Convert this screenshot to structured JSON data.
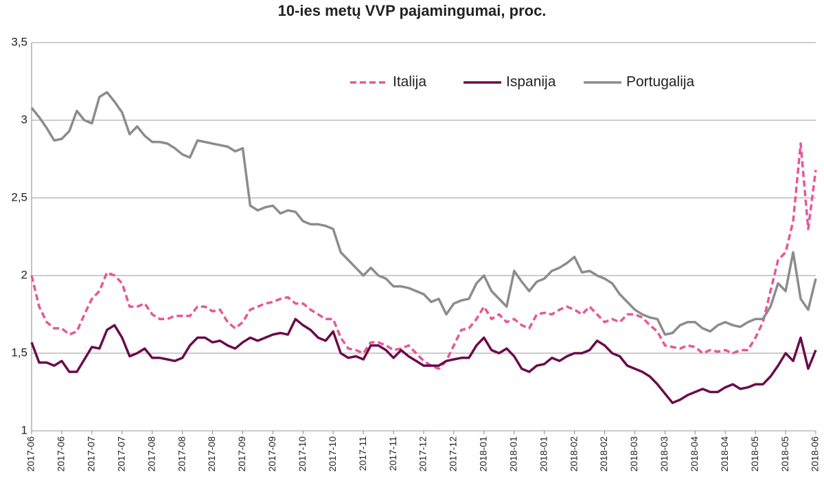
{
  "chart_data": {
    "type": "line",
    "title": "10-ies metų VVP pajamingumai,  proc.",
    "categories": [
      "2017-06",
      null,
      null,
      null,
      "2017-06",
      null,
      null,
      null,
      "2017-07",
      null,
      null,
      null,
      "2017-07",
      null,
      null,
      null,
      "2017-08",
      null,
      null,
      null,
      "2017-08",
      null,
      null,
      null,
      "2017-08",
      null,
      null,
      null,
      "2017-09",
      null,
      null,
      null,
      "2017-09",
      null,
      null,
      null,
      "2017-10",
      null,
      null,
      null,
      "2017-10",
      null,
      null,
      null,
      "2017-11",
      null,
      null,
      null,
      "2017-11",
      null,
      null,
      null,
      "2017-12",
      null,
      null,
      null,
      "2017-12",
      null,
      null,
      null,
      "2018-01",
      null,
      null,
      null,
      "2018-01",
      null,
      null,
      null,
      "2018-01",
      null,
      null,
      null,
      "2018-02",
      null,
      null,
      null,
      "2018-02",
      null,
      null,
      null,
      "2018-03",
      null,
      null,
      null,
      "2018-03",
      null,
      null,
      null,
      "2018-04",
      null,
      null,
      null,
      "2018-04",
      null,
      null,
      null,
      "2018-05",
      null,
      null,
      null,
      "2018-05",
      null,
      null,
      null,
      "2018-06"
    ],
    "series": [
      {
        "name": "Italija",
        "color": "#e8559a",
        "dashed": true,
        "values": [
          2.0,
          1.8,
          1.7,
          1.66,
          1.66,
          1.62,
          1.64,
          1.75,
          1.85,
          1.9,
          2.02,
          2.0,
          1.95,
          1.8,
          1.8,
          1.82,
          1.75,
          1.72,
          1.72,
          1.74,
          1.74,
          1.74,
          1.8,
          1.8,
          1.77,
          1.78,
          1.7,
          1.66,
          1.7,
          1.78,
          1.8,
          1.82,
          1.83,
          1.85,
          1.86,
          1.82,
          1.82,
          1.78,
          1.75,
          1.72,
          1.72,
          1.6,
          1.53,
          1.52,
          1.5,
          1.57,
          1.57,
          1.55,
          1.52,
          1.53,
          1.55,
          1.5,
          1.45,
          1.42,
          1.4,
          1.45,
          1.55,
          1.65,
          1.66,
          1.72,
          1.8,
          1.72,
          1.75,
          1.7,
          1.72,
          1.68,
          1.66,
          1.75,
          1.76,
          1.75,
          1.78,
          1.8,
          1.78,
          1.75,
          1.8,
          1.75,
          1.7,
          1.72,
          1.7,
          1.75,
          1.75,
          1.73,
          1.68,
          1.64,
          1.55,
          1.54,
          1.53,
          1.55,
          1.54,
          1.5,
          1.52,
          1.51,
          1.52,
          1.5,
          1.52,
          1.52,
          1.6,
          1.7,
          1.9,
          2.1,
          2.15,
          2.35,
          2.85,
          2.3,
          2.68
        ]
      },
      {
        "name": "Ispanija",
        "color": "#6b0b4a",
        "dashed": false,
        "values": [
          1.57,
          1.44,
          1.44,
          1.42,
          1.45,
          1.38,
          1.38,
          1.46,
          1.54,
          1.53,
          1.65,
          1.68,
          1.6,
          1.48,
          1.5,
          1.53,
          1.47,
          1.47,
          1.46,
          1.45,
          1.47,
          1.55,
          1.6,
          1.6,
          1.57,
          1.58,
          1.55,
          1.53,
          1.57,
          1.6,
          1.58,
          1.6,
          1.62,
          1.63,
          1.62,
          1.72,
          1.68,
          1.65,
          1.6,
          1.58,
          1.64,
          1.5,
          1.47,
          1.48,
          1.46,
          1.55,
          1.55,
          1.52,
          1.47,
          1.52,
          1.48,
          1.45,
          1.42,
          1.42,
          1.42,
          1.45,
          1.46,
          1.47,
          1.47,
          1.55,
          1.6,
          1.52,
          1.5,
          1.53,
          1.48,
          1.4,
          1.38,
          1.42,
          1.43,
          1.47,
          1.45,
          1.48,
          1.5,
          1.5,
          1.52,
          1.58,
          1.55,
          1.5,
          1.48,
          1.42,
          1.4,
          1.38,
          1.35,
          1.3,
          1.24,
          1.18,
          1.2,
          1.23,
          1.25,
          1.27,
          1.25,
          1.25,
          1.28,
          1.3,
          1.27,
          1.28,
          1.3,
          1.3,
          1.35,
          1.42,
          1.5,
          1.45,
          1.6,
          1.4,
          1.52
        ]
      },
      {
        "name": "Portugalija",
        "color": "#8c8c8c",
        "dashed": false,
        "values": [
          3.08,
          3.02,
          2.95,
          2.87,
          2.88,
          2.93,
          3.06,
          3.0,
          2.98,
          3.15,
          3.18,
          3.12,
          3.05,
          2.91,
          2.96,
          2.9,
          2.86,
          2.86,
          2.85,
          2.82,
          2.78,
          2.76,
          2.87,
          2.86,
          2.85,
          2.84,
          2.83,
          2.8,
          2.82,
          2.45,
          2.42,
          2.44,
          2.45,
          2.4,
          2.42,
          2.41,
          2.35,
          2.33,
          2.33,
          2.32,
          2.3,
          2.15,
          2.1,
          2.05,
          2.0,
          2.05,
          2.0,
          1.98,
          1.93,
          1.93,
          1.92,
          1.9,
          1.88,
          1.83,
          1.85,
          1.75,
          1.82,
          1.84,
          1.85,
          1.95,
          2.0,
          1.9,
          1.85,
          1.8,
          2.03,
          1.96,
          1.9,
          1.96,
          1.98,
          2.03,
          2.05,
          2.08,
          2.12,
          2.02,
          2.03,
          2.0,
          1.98,
          1.95,
          1.88,
          1.83,
          1.78,
          1.75,
          1.73,
          1.72,
          1.62,
          1.63,
          1.68,
          1.7,
          1.7,
          1.66,
          1.64,
          1.68,
          1.7,
          1.68,
          1.67,
          1.7,
          1.72,
          1.72,
          1.8,
          1.95,
          1.9,
          2.15,
          1.85,
          1.78,
          1.98
        ]
      }
    ],
    "ylim": [
      1,
      3.5
    ],
    "yticks": [
      1,
      {
        "value": 1.5,
        "label": "1,5"
      },
      2,
      {
        "value": 2.5,
        "label": "2,5"
      },
      3,
      {
        "value": 3.5,
        "label": "3,5"
      }
    ],
    "grid": true,
    "legend": "top"
  }
}
